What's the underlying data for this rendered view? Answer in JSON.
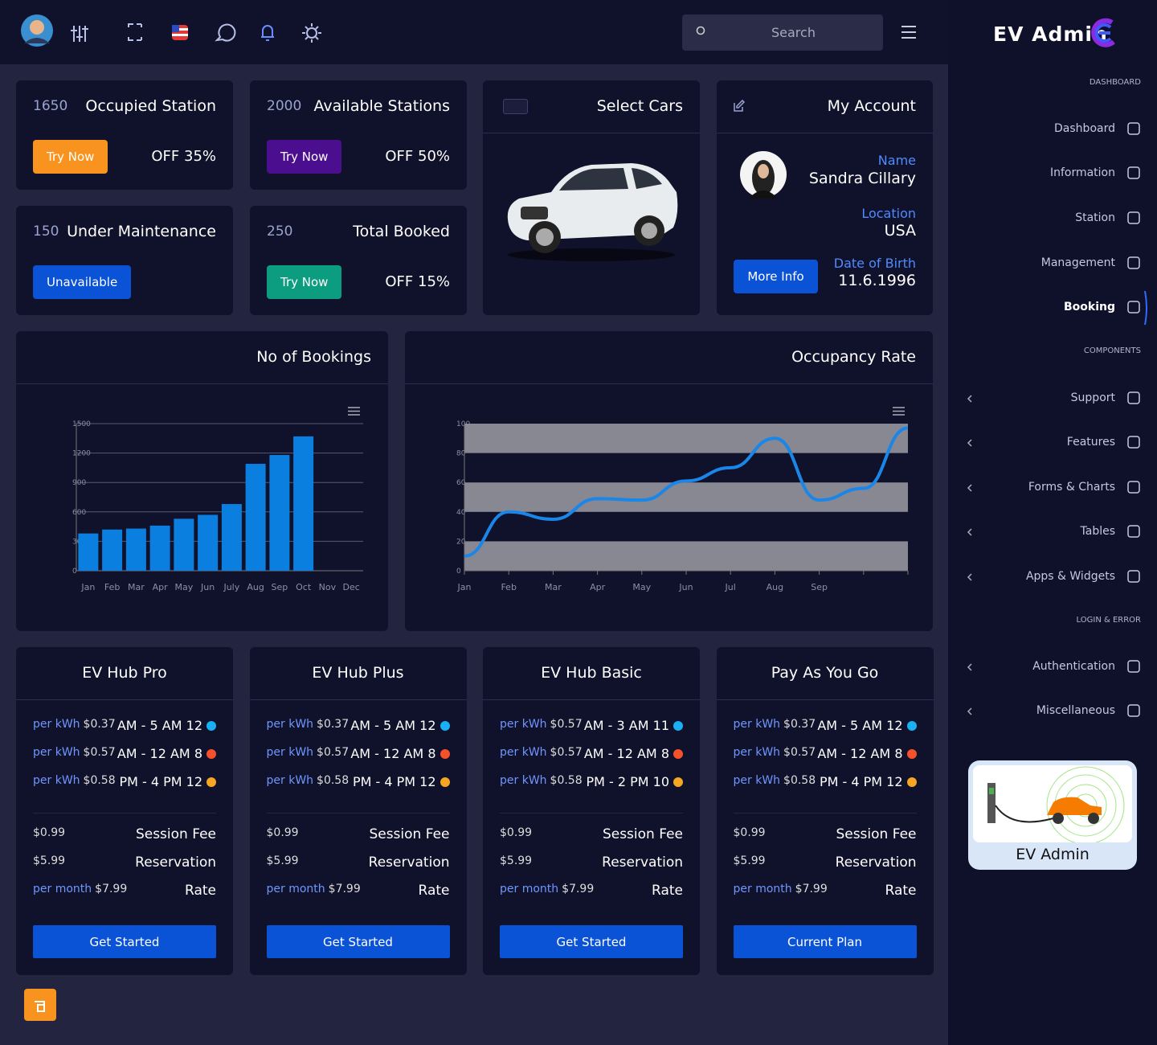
{
  "header": {
    "search": "Search"
  },
  "brand": "EV Admin",
  "sidebar": {
    "sections": [
      {
        "title": "DASHBOARD",
        "items": [
          "Dashboard",
          "Information",
          "Station",
          "Management",
          "Booking"
        ]
      },
      {
        "title": "COMPONENTS",
        "items": [
          "Support",
          "Features",
          "Forms & Charts",
          "Tables",
          "Apps & Widgets"
        ]
      },
      {
        "title": "LOGIN & ERROR",
        "items": [
          "Authentication",
          "Miscellaneous"
        ]
      }
    ],
    "promo": "EV Admin"
  },
  "stats": [
    {
      "count": 1650,
      "label": "Occupied Station",
      "button": "Try Now",
      "offer": "OFF 35%"
    },
    {
      "count": 2000,
      "label": "Available Stations",
      "button": "Try Now",
      "offer": "OFF 50%"
    },
    {
      "count": 150,
      "label": "Under Maintenance",
      "button": "Unavailable"
    },
    {
      "count": 250,
      "label": "Total Booked",
      "button": "Try Now",
      "offer": "OFF 15%"
    }
  ],
  "cars": {
    "title": "Select Cars"
  },
  "account": {
    "title": "My Account",
    "fields": [
      {
        "label": "Name",
        "value": "Sandra Cillary"
      },
      {
        "label": "Location",
        "value": "USA"
      },
      {
        "label": "Date of Birth",
        "value": "11.6.1996"
      }
    ],
    "button": "More Info"
  },
  "chart_data": [
    {
      "type": "bar",
      "title": "No of Bookings",
      "categories": [
        "Jan",
        "Feb",
        "Mar",
        "Apr",
        "May",
        "Jun",
        "July",
        "Aug",
        "Sep",
        "Oct",
        "Nov",
        "Dec"
      ],
      "values": [
        380,
        420,
        430,
        460,
        530,
        570,
        680,
        1090,
        1180,
        1370,
        null,
        null
      ],
      "color": "#0a7fe0",
      "ylim": [
        0,
        1500
      ],
      "yticks": [
        0,
        300,
        600,
        900,
        1200,
        1500
      ],
      "grid": true
    },
    {
      "type": "line",
      "title": "Occupancy Rate",
      "categories": [
        "Jan",
        "Feb",
        "Mar",
        "Apr",
        "May",
        "Jun",
        "Jul",
        "Aug",
        "Sep",
        null,
        null
      ],
      "values": [
        10,
        40,
        35,
        49,
        48,
        61,
        70,
        90,
        48,
        56,
        97
      ],
      "color": "#1a86e8",
      "ylim": [
        0,
        100
      ],
      "yticks": [
        0,
        20,
        40,
        60,
        80,
        100
      ],
      "grid": true
    }
  ],
  "plans": [
    {
      "name": "EV Hub Pro",
      "rates": [
        {
          "unit": "per kWh",
          "price": "$0.37",
          "time": "AM - 5 AM 12"
        },
        {
          "unit": "per kWh",
          "price": "$0.57",
          "time": "AM - 12 AM 8"
        },
        {
          "unit": "per kWh",
          "price": "$0.58",
          "time": "PM - 4 PM 12"
        }
      ],
      "fees": [
        {
          "price": "$0.99",
          "label": "Session Fee"
        },
        {
          "price": "$5.99",
          "label": "Reservation"
        },
        {
          "unit": "per month",
          "price": "$7.99",
          "label": "Rate"
        }
      ],
      "button": "Get Started"
    },
    {
      "name": "EV Hub Plus",
      "rates": [
        {
          "unit": "per kWh",
          "price": "$0.37",
          "time": "AM - 5 AM 12"
        },
        {
          "unit": "per kWh",
          "price": "$0.57",
          "time": "AM - 12 AM 8"
        },
        {
          "unit": "per kWh",
          "price": "$0.58",
          "time": "PM - 4 PM 12"
        }
      ],
      "fees": [
        {
          "price": "$0.99",
          "label": "Session Fee"
        },
        {
          "price": "$5.99",
          "label": "Reservation"
        },
        {
          "unit": "per month",
          "price": "$7.99",
          "label": "Rate"
        }
      ],
      "button": "Get Started"
    },
    {
      "name": "EV Hub Basic",
      "rates": [
        {
          "unit": "per kWh",
          "price": "$0.57",
          "time": "AM - 3 AM 11"
        },
        {
          "unit": "per kWh",
          "price": "$0.57",
          "time": "AM - 12 AM 8"
        },
        {
          "unit": "per kWh",
          "price": "$0.58",
          "time": "PM - 2 PM 10"
        }
      ],
      "fees": [
        {
          "price": "$0.99",
          "label": "Session Fee"
        },
        {
          "price": "$5.99",
          "label": "Reservation"
        },
        {
          "unit": "per month",
          "price": "$7.99",
          "label": "Rate"
        }
      ],
      "button": "Get Started"
    },
    {
      "name": "Pay As You Go",
      "rates": [
        {
          "unit": "per kWh",
          "price": "$0.37",
          "time": "AM - 5 AM 12"
        },
        {
          "unit": "per kWh",
          "price": "$0.57",
          "time": "AM - 12 AM 8"
        },
        {
          "unit": "per kWh",
          "price": "$0.58",
          "time": "PM - 4 PM 12"
        }
      ],
      "fees": [
        {
          "price": "$0.99",
          "label": "Session Fee"
        },
        {
          "price": "$5.99",
          "label": "Reservation"
        },
        {
          "unit": "per month",
          "price": "$7.99",
          "label": "Rate"
        }
      ],
      "button": "Current Plan"
    }
  ]
}
